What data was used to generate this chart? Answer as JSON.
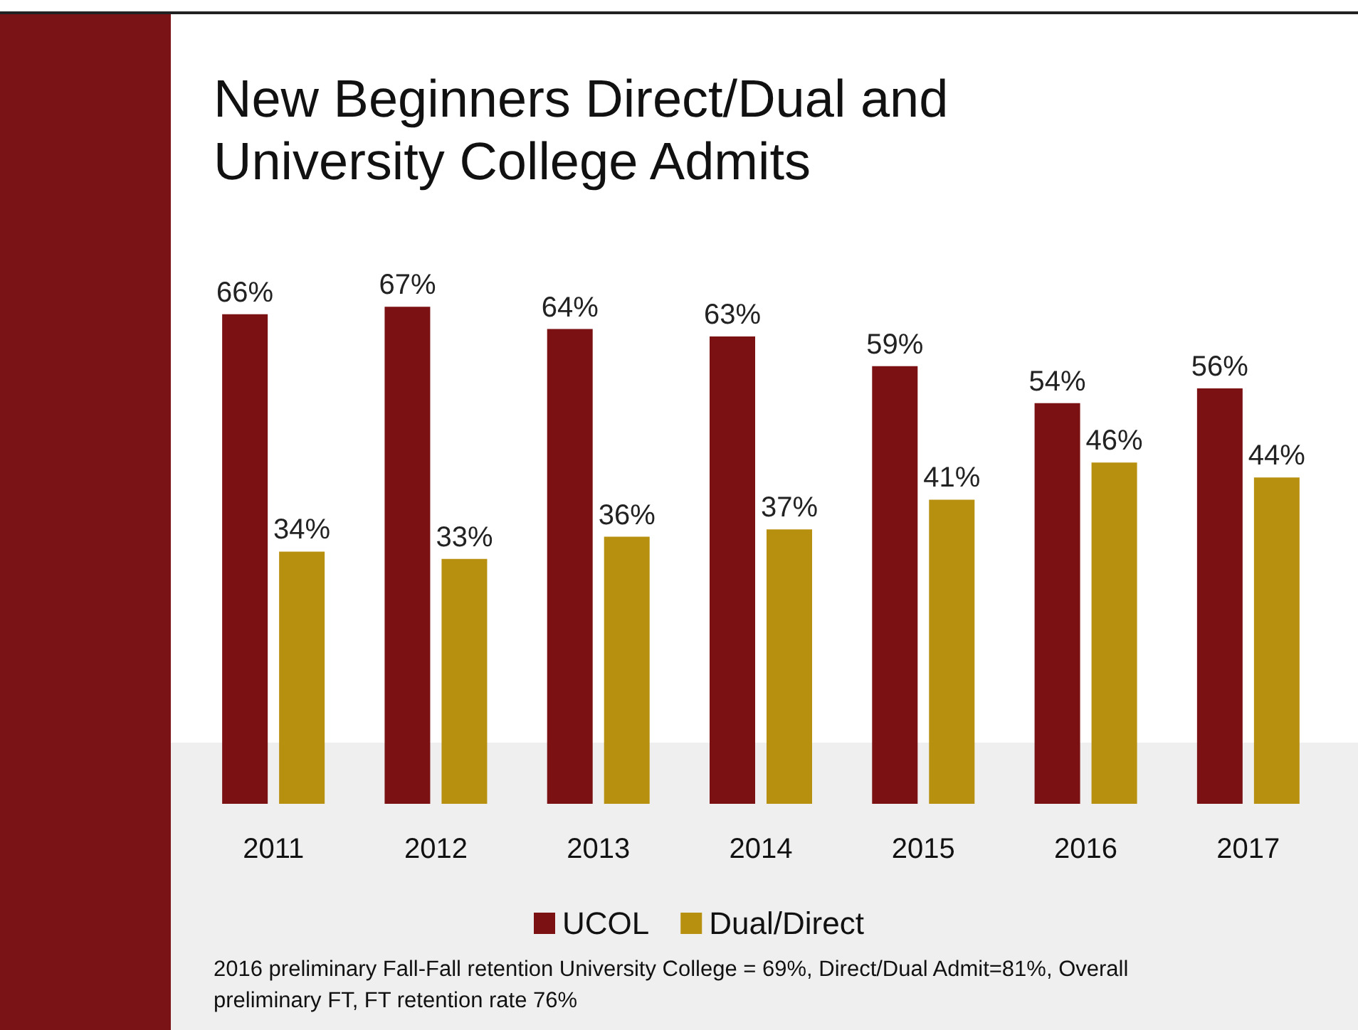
{
  "chart_data": {
    "type": "bar",
    "title": "New Beginners Direct/Dual and University College Admits",
    "categories": [
      "2011",
      "2012",
      "2013",
      "2014",
      "2015",
      "2016",
      "2017"
    ],
    "series": [
      {
        "name": "UCOL",
        "color": "#7b1113",
        "values": [
          66,
          67,
          64,
          63,
          59,
          54,
          56
        ],
        "value_labels": [
          "66%",
          "67%",
          "64%",
          "63%",
          "59%",
          "54%",
          "56%"
        ]
      },
      {
        "name": "Dual/Direct",
        "color": "#b8900f",
        "values": [
          34,
          33,
          36,
          37,
          41,
          46,
          44
        ],
        "value_labels": [
          "34%",
          "33%",
          "36%",
          "37%",
          "41%",
          "46%",
          "44%"
        ]
      }
    ],
    "legend": "bottom",
    "annotations": [
      "2016 preliminary Fall-Fall retention University College = 69%, Direct/Dual Admit=81%, Overall preliminary FT, FT retention rate 76%"
    ]
  }
}
